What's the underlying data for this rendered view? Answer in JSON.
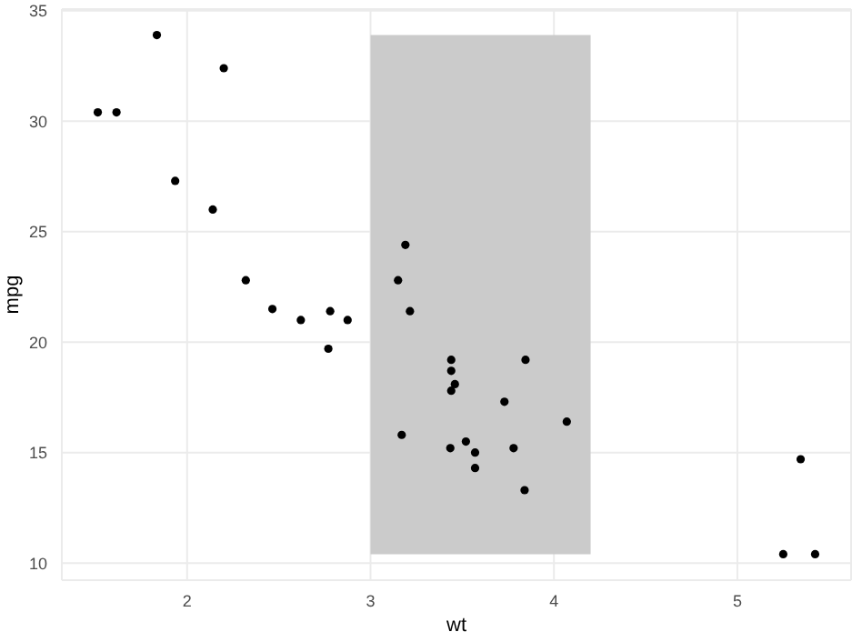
{
  "chart_data": {
    "type": "scatter",
    "xlabel": "wt",
    "ylabel": "mpg",
    "x": [
      2.62,
      2.875,
      2.32,
      3.215,
      3.44,
      3.46,
      3.57,
      3.19,
      3.15,
      3.44,
      3.44,
      4.07,
      3.73,
      3.78,
      5.25,
      5.424,
      5.345,
      2.2,
      1.615,
      1.835,
      2.465,
      3.52,
      3.435,
      3.84,
      3.845,
      1.935,
      2.14,
      1.513,
      3.17,
      2.77,
      3.57,
      2.78
    ],
    "values": [
      21.0,
      21.0,
      22.8,
      21.4,
      18.7,
      18.1,
      14.3,
      24.4,
      22.8,
      19.2,
      17.8,
      16.4,
      17.3,
      15.2,
      10.4,
      10.4,
      14.7,
      32.4,
      30.4,
      33.9,
      21.5,
      15.5,
      15.2,
      13.3,
      19.2,
      27.3,
      26.0,
      30.4,
      15.8,
      19.7,
      15.0,
      21.4
    ],
    "color": "#000000",
    "marker": "circle",
    "xlim": [
      1.317,
      5.62
    ],
    "xticks": [
      2,
      3,
      4,
      5
    ],
    "ylim": [
      9.225,
      35.075
    ],
    "yticks": [
      10,
      15,
      20,
      25,
      30,
      35
    ],
    "grid": true,
    "bands": [
      {
        "axis": "x",
        "from": 3,
        "to": 4.2,
        "color": "#cbcbcb"
      }
    ]
  }
}
